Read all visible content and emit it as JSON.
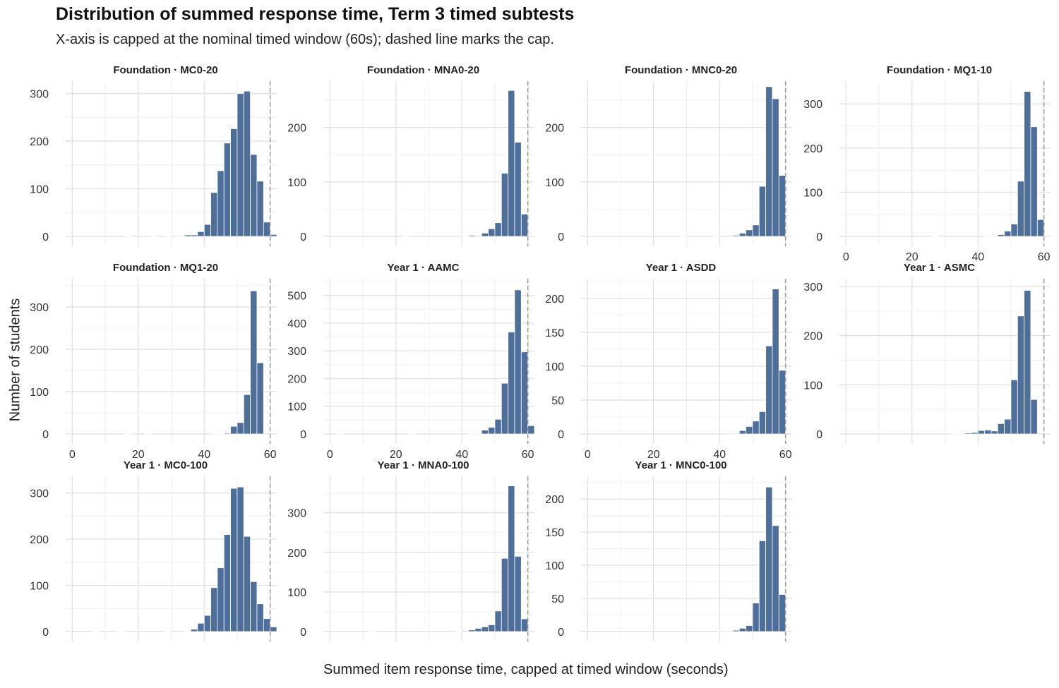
{
  "title": "Distribution of summed response time, Term 3 timed subtests",
  "subtitle": "X-axis is capped at the nominal timed window (60s); dashed line marks the cap.",
  "colors": {
    "bar": "#4f6f9b",
    "bar_edge": "#ffffff",
    "grid_major": "#e3e3e3",
    "grid_minor": "#f0f0f0",
    "cap_line": "#999999",
    "text": "#333333"
  },
  "chart_data": {
    "type": "bar",
    "subtype": "faceted-histogram",
    "xlabel": "Summed item response time, capped at timed window (seconds)",
    "ylabel": "Number of students",
    "xlim": [
      -2,
      62
    ],
    "x_ticks": [
      0,
      20,
      40,
      60
    ],
    "bin_width": 2,
    "cap_seconds": 60,
    "grid": true,
    "facets": [
      {
        "label": "Foundation · MC0-20",
        "ylim": [
          0,
          320
        ],
        "y_ticks": [
          0,
          100,
          200,
          300
        ],
        "bins": [
          [
            17,
            1
          ],
          [
            25,
            1
          ],
          [
            29,
            1
          ],
          [
            33,
            1
          ],
          [
            35,
            3
          ],
          [
            37,
            3
          ],
          [
            39,
            10
          ],
          [
            41,
            25
          ],
          [
            43,
            92
          ],
          [
            45,
            138
          ],
          [
            47,
            196
          ],
          [
            49,
            226
          ],
          [
            51,
            300
          ],
          [
            53,
            305
          ],
          [
            55,
            172
          ],
          [
            57,
            116
          ],
          [
            59,
            30
          ],
          [
            61,
            4
          ]
        ]
      },
      {
        "label": "Foundation · MNA0-20",
        "ylim": [
          0,
          280
        ],
        "y_ticks": [
          0,
          100,
          200
        ],
        "bins": [
          [
            23,
            1
          ],
          [
            41,
            1
          ],
          [
            43,
            2
          ],
          [
            47,
            6
          ],
          [
            49,
            14
          ],
          [
            51,
            25
          ],
          [
            53,
            116
          ],
          [
            55,
            268
          ],
          [
            57,
            173
          ],
          [
            59,
            41
          ]
        ]
      },
      {
        "label": "Foundation · MNC0-20",
        "ylim": [
          0,
          280
        ],
        "y_ticks": [
          0,
          100,
          200
        ],
        "bins": [
          [
            29,
            1
          ],
          [
            39,
            1
          ],
          [
            45,
            2
          ],
          [
            47,
            6
          ],
          [
            49,
            12
          ],
          [
            51,
            21
          ],
          [
            53,
            92
          ],
          [
            55,
            275
          ],
          [
            57,
            253
          ],
          [
            59,
            112
          ]
        ]
      },
      {
        "label": "Foundation · MQ1-10",
        "ylim": [
          0,
          345
        ],
        "y_ticks": [
          0,
          100,
          200,
          300
        ],
        "bins": [
          [
            27,
            1
          ],
          [
            43,
            1
          ],
          [
            45,
            1
          ],
          [
            47,
            4
          ],
          [
            49,
            12
          ],
          [
            51,
            28
          ],
          [
            53,
            125
          ],
          [
            55,
            328
          ],
          [
            57,
            248
          ],
          [
            59,
            38
          ]
        ]
      },
      {
        "label": "Foundation · MQ1-20",
        "ylim": [
          0,
          360
        ],
        "y_ticks": [
          0,
          100,
          200,
          300
        ],
        "bins": [
          [
            17,
            1
          ],
          [
            23,
            1
          ],
          [
            43,
            1
          ],
          [
            45,
            1
          ],
          [
            47,
            2
          ],
          [
            49,
            18
          ],
          [
            51,
            27
          ],
          [
            53,
            93
          ],
          [
            55,
            338
          ],
          [
            57,
            168
          ]
        ]
      },
      {
        "label": "Year 1 · AAMC",
        "ylim": [
          0,
          550
        ],
        "y_ticks": [
          0,
          100,
          200,
          300,
          400,
          500
        ],
        "bins": [
          [
            3,
            1
          ],
          [
            25,
            1
          ],
          [
            43,
            1
          ],
          [
            45,
            1
          ],
          [
            47,
            14
          ],
          [
            49,
            24
          ],
          [
            51,
            53
          ],
          [
            53,
            183
          ],
          [
            55,
            368
          ],
          [
            57,
            520
          ],
          [
            59,
            296
          ],
          [
            61,
            30
          ]
        ]
      },
      {
        "label": "Year 1 · ASDD",
        "ylim": [
          0,
          225
        ],
        "y_ticks": [
          0,
          50,
          100,
          150,
          200
        ],
        "bins": [
          [
            43,
            1
          ],
          [
            45,
            1
          ],
          [
            47,
            5
          ],
          [
            49,
            11
          ],
          [
            51,
            19
          ],
          [
            53,
            33
          ],
          [
            55,
            130
          ],
          [
            57,
            214
          ],
          [
            59,
            94
          ]
        ]
      },
      {
        "label": "Year 1 · ASMC",
        "ylim": [
          0,
          310
        ],
        "y_ticks": [
          0,
          100,
          200,
          300
        ],
        "bins": [
          [
            33,
            1
          ],
          [
            35,
            1
          ],
          [
            37,
            2
          ],
          [
            39,
            3
          ],
          [
            41,
            7
          ],
          [
            43,
            8
          ],
          [
            45,
            6
          ],
          [
            47,
            21
          ],
          [
            49,
            30
          ],
          [
            51,
            110
          ],
          [
            53,
            240
          ],
          [
            55,
            292
          ],
          [
            57,
            70
          ]
        ]
      },
      {
        "label": "Year 1 · MC0-100",
        "ylim": [
          0,
          330
        ],
        "y_ticks": [
          0,
          100,
          200,
          300
        ],
        "bins": [
          [
            7,
            1
          ],
          [
            15,
            1
          ],
          [
            29,
            1
          ],
          [
            35,
            1
          ],
          [
            37,
            5
          ],
          [
            39,
            18
          ],
          [
            41,
            35
          ],
          [
            43,
            95
          ],
          [
            45,
            138
          ],
          [
            47,
            210
          ],
          [
            49,
            310
          ],
          [
            51,
            313
          ],
          [
            53,
            206
          ],
          [
            55,
            108
          ],
          [
            57,
            60
          ],
          [
            59,
            28
          ],
          [
            61,
            10
          ]
        ]
      },
      {
        "label": "Year 1 · MNA0-100",
        "ylim": [
          0,
          385
        ],
        "y_ticks": [
          0,
          100,
          200,
          300
        ],
        "bins": [
          [
            13,
            1
          ],
          [
            39,
            1
          ],
          [
            41,
            2
          ],
          [
            43,
            4
          ],
          [
            45,
            8
          ],
          [
            47,
            12
          ],
          [
            49,
            17
          ],
          [
            51,
            52
          ],
          [
            53,
            185
          ],
          [
            55,
            368
          ],
          [
            57,
            190
          ],
          [
            59,
            32
          ]
        ]
      },
      {
        "label": "Year 1 · MNC0-100",
        "ylim": [
          0,
          230
        ],
        "y_ticks": [
          0,
          50,
          100,
          150,
          200
        ],
        "bins": [
          [
            41,
            1
          ],
          [
            43,
            1
          ],
          [
            45,
            2
          ],
          [
            47,
            5
          ],
          [
            49,
            9
          ],
          [
            51,
            43
          ],
          [
            53,
            137
          ],
          [
            55,
            218
          ],
          [
            57,
            160
          ],
          [
            59,
            56
          ]
        ]
      }
    ]
  }
}
